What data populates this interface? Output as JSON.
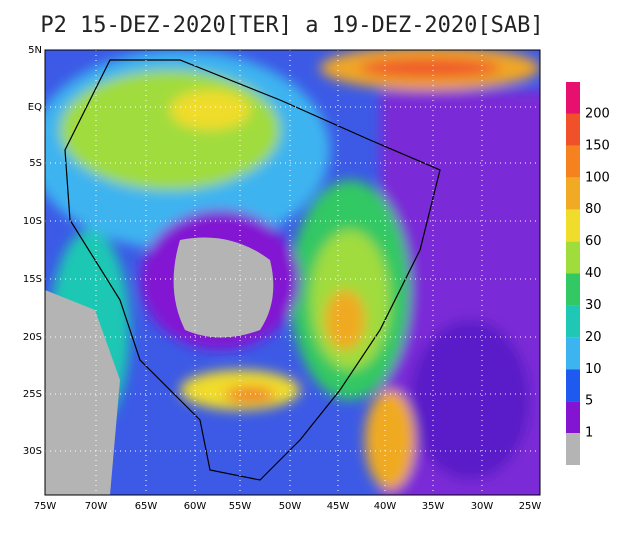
{
  "title": "P2 15-DEZ-2020[TER] a 19-DEZ-2020[SAB]",
  "lat_labels": [
    "5N",
    "EQ",
    "5S",
    "10S",
    "15S",
    "20S",
    "25S",
    "30S"
  ],
  "lon_labels": [
    "75W",
    "70W",
    "65W",
    "60W",
    "55W",
    "50W",
    "45W",
    "40W",
    "35W",
    "30W",
    "25W"
  ],
  "colorbar": {
    "labels": [
      "200",
      "150",
      "100",
      "80",
      "60",
      "40",
      "30",
      "20",
      "10",
      "5",
      "1"
    ],
    "colors": [
      "#e8106e",
      "#f0502a",
      "#f5821e",
      "#f0aa23",
      "#f0dc2a",
      "#a0dc3c",
      "#32c864",
      "#1ec8b4",
      "#3cb4f0",
      "#1e5af0",
      "#8214d2",
      "#b4b4b4"
    ]
  }
}
